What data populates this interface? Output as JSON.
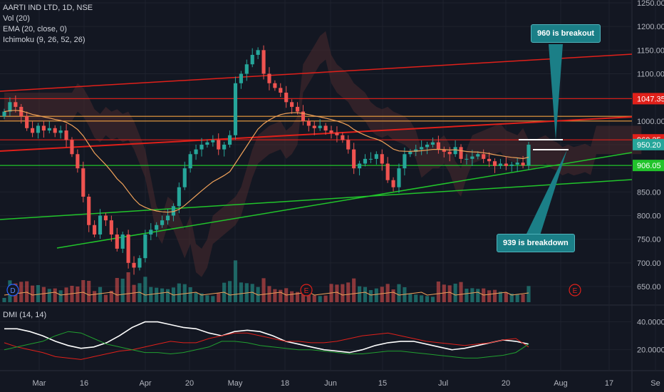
{
  "legend": {
    "symbol": "AARTI IND LTD, 1D, NSE",
    "vol": "Vol (20)",
    "ema": "EMA (20, close, 0)",
    "ichimoku": "Ichimoku (9, 26, 52, 26)",
    "dmi": "DMI (14, 14)"
  },
  "annotations": {
    "breakout": "960 is breakout",
    "breakdown": "939 is breakdown"
  },
  "colors": {
    "background": "#131722",
    "up": "#26a69a",
    "down": "#ef5350",
    "ema": "#f0a25a",
    "cloud_bull": "#2e4a3a",
    "cloud_bear": "#4a2a2e",
    "red_line": "#e0201a",
    "green_line": "#21c42b",
    "orange_line": "#f0a040",
    "callout": "#1b7f87"
  },
  "chart_data": [
    {
      "type": "candlestick",
      "ylim": [
        635,
        1270
      ],
      "y_ticks": [
        "650.00",
        "700.00",
        "750.00",
        "800.00",
        "850.00",
        "900.00",
        "950.00",
        "1000.00",
        "1050.00",
        "1100.00",
        "1150.00",
        "1200.00",
        "1250.00"
      ],
      "x_ticks": [
        "Mar",
        "16",
        "Apr",
        "20",
        "May",
        "18",
        "Jun",
        "15",
        "Jul",
        "20",
        "Aug",
        "17",
        "Se"
      ],
      "price_labels": [
        {
          "text": "1047.35",
          "value": 1047.35,
          "color": "#e0201a"
        },
        {
          "text": "960.25",
          "value": 960.25,
          "color": "#e0201a"
        },
        {
          "text": "950.20",
          "value": 950.2,
          "color": "#26a69a"
        },
        {
          "text": "906.05",
          "value": 906.05,
          "color": "#21c42b"
        }
      ],
      "horizontal_levels": [
        {
          "value": 1047.35,
          "color": "#e0201a"
        },
        {
          "value": 1010,
          "color": "#f0a040"
        },
        {
          "value": 1000,
          "color": "#f0a040"
        },
        {
          "value": 960.25,
          "color": "#e0201a"
        },
        {
          "value": 906.05,
          "color": "#21c42b"
        }
      ],
      "closes": [
        1020,
        1040,
        1030,
        1010,
        985,
        975,
        990,
        980,
        985,
        975,
        980,
        960,
        930,
        900,
        840,
        780,
        760,
        800,
        790,
        760,
        730,
        760,
        700,
        690,
        710,
        760,
        770,
        780,
        790,
        800,
        820,
        860,
        900,
        930,
        940,
        950,
        955,
        960,
        940,
        950,
        970,
        1080,
        1100,
        1120,
        1140,
        1150,
        1100,
        1080,
        1070,
        1060,
        1040,
        1030,
        1020,
        1000,
        990,
        985,
        990,
        980,
        975,
        970,
        960,
        940,
        900,
        910,
        920,
        920,
        930,
        910,
        875,
        860,
        900,
        930,
        935,
        940,
        945,
        950,
        955,
        940,
        935,
        930,
        945,
        920,
        920,
        925,
        930,
        920,
        915,
        905,
        910,
        905,
        908,
        912,
        906,
        950
      ],
      "marked_levels_note": "960 is breakout / 939 is breakdown"
    },
    {
      "type": "line",
      "title": "DMI (14, 14)",
      "ylim": [
        5,
        50
      ],
      "y_ticks": [
        "40.0000",
        "20.0000"
      ],
      "series": [
        {
          "color": "#ffffff",
          "values": [
            35,
            35,
            33,
            30,
            26,
            23,
            21,
            22,
            25,
            30,
            36,
            40,
            40,
            38,
            36,
            35,
            32,
            30,
            33,
            34,
            33,
            30,
            26,
            24,
            22,
            20,
            19,
            18,
            20,
            23,
            25,
            26,
            26,
            24,
            22,
            20,
            21,
            23,
            25,
            27,
            26,
            24
          ]
        },
        {
          "color": "#e0201a",
          "values": [
            25,
            22,
            20,
            18,
            15,
            14,
            13,
            15,
            17,
            19,
            20,
            22,
            24,
            26,
            25,
            25,
            28,
            30,
            32,
            32,
            30,
            28,
            26,
            26,
            25,
            25,
            26,
            28,
            30,
            31,
            32,
            30,
            28,
            26,
            25,
            24,
            23,
            24,
            25,
            27,
            28,
            22
          ]
        },
        {
          "color": "#21a030",
          "values": [
            20,
            22,
            24,
            26,
            30,
            33,
            32,
            28,
            24,
            22,
            20,
            18,
            18,
            17,
            18,
            20,
            22,
            26,
            26,
            25,
            23,
            22,
            21,
            20,
            20,
            19,
            18,
            17,
            17,
            18,
            19,
            19,
            18,
            17,
            16,
            15,
            14,
            14,
            15,
            16,
            18,
            24
          ]
        }
      ]
    }
  ]
}
